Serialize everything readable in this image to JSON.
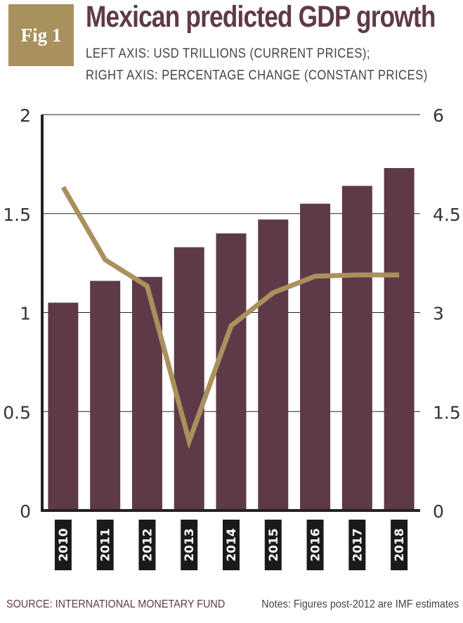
{
  "badge": {
    "label": "Fig 1"
  },
  "header": {
    "title": "Mexican predicted GDP growth",
    "subtitle_line1": "LEFT AXIS: USD TRILLIONS (CURRENT PRICES);",
    "subtitle_line2": "RIGHT AXIS: PERCENTAGE CHANGE (CONSTANT PRICES)"
  },
  "footer": {
    "source": "SOURCE: INTERNATIONAL MONETARY FUND",
    "notes": "Notes: Figures post-2012 are IMF estimates"
  },
  "colors": {
    "bar": "#5e3a48",
    "line": "#a9915d",
    "badge": "#a9915d",
    "axis": "#222222",
    "grid": "#222222"
  },
  "chart_data": {
    "type": "bar",
    "categories": [
      "2010",
      "2011",
      "2012",
      "2013",
      "2014",
      "2015",
      "2016",
      "2017",
      "2018"
    ],
    "series": [
      {
        "type": "bar",
        "axis": "left",
        "values": [
          1.05,
          1.16,
          1.18,
          1.33,
          1.4,
          1.47,
          1.55,
          1.64,
          1.73
        ]
      },
      {
        "type": "line",
        "axis": "right",
        "values": [
          4.9,
          3.8,
          3.4,
          1.05,
          2.8,
          3.3,
          3.55,
          3.57,
          3.57
        ]
      }
    ],
    "left_axis": {
      "ylim": [
        0,
        2
      ],
      "ticks": [
        "0",
        "0.5",
        "1",
        "1.5",
        "2"
      ]
    },
    "right_axis": {
      "ylim": [
        0,
        6
      ],
      "ticks": [
        "0",
        "1.5",
        "3",
        "4.5",
        "6"
      ]
    },
    "grid": true,
    "legend": "none"
  }
}
